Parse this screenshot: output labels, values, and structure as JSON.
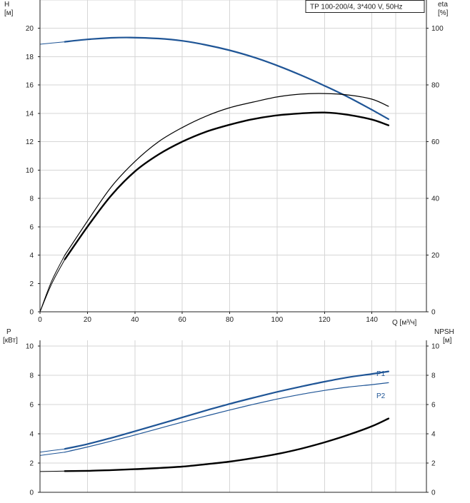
{
  "legend_box": "TP 100-200/4, 3*400 V, 50Hz",
  "colors": {
    "head": "#1f5596",
    "power": "#1f5596",
    "eta": "#000000",
    "npsh": "#000000",
    "grid": "#d6d6d6"
  },
  "chart_data": [
    {
      "type": "line",
      "panel": "upper",
      "title": "TP 100-200/4, 3*400 V, 50Hz",
      "xlabel": "Q [м³/ч]",
      "ylabel": "H\n[м]",
      "y2label": "eta\n[%]",
      "x_ticks": [
        "0",
        "20",
        "40",
        "60",
        "80",
        "100",
        "120",
        "140"
      ],
      "y_ticks": [
        "0",
        "2",
        "4",
        "6",
        "8",
        "10",
        "12",
        "14",
        "16",
        "18",
        "20"
      ],
      "y2_ticks": [
        "0",
        "20",
        "40",
        "60",
        "80",
        "100"
      ],
      "xlim": [
        0,
        163
      ],
      "ylim": [
        0,
        22
      ],
      "y2lim": [
        0,
        110
      ],
      "grid": true,
      "series": [
        {
          "name": "",
          "axis": "y",
          "color": "#1f5596",
          "stroke": 2.2,
          "x": [
            10.5,
            20,
            30,
            38,
            50,
            60,
            70,
            80,
            90,
            100,
            110,
            120,
            130,
            140,
            147
          ],
          "y": [
            19.05,
            19.22,
            19.33,
            19.35,
            19.28,
            19.12,
            18.83,
            18.45,
            17.97,
            17.38,
            16.7,
            15.95,
            15.15,
            14.25,
            13.6
          ]
        },
        {
          "name": "",
          "axis": "y",
          "color": "#1f5596",
          "stroke": 1,
          "x": [
            0,
            10.5
          ],
          "y": [
            18.88,
            19.05
          ]
        },
        {
          "name": "",
          "axis": "y2",
          "color": "#000000",
          "stroke": 1.2,
          "x": [
            10.5,
            20,
            30,
            40,
            50,
            60,
            70,
            80,
            90,
            100,
            110,
            120,
            130,
            140,
            147
          ],
          "y": [
            20,
            32,
            44,
            53,
            60,
            65,
            69,
            72,
            74,
            75.8,
            76.8,
            77,
            76.5,
            75,
            72.5
          ]
        },
        {
          "name": "",
          "axis": "y2",
          "color": "#000000",
          "stroke": 1,
          "x": [
            0,
            5,
            10.5
          ],
          "y": [
            0,
            11,
            20
          ]
        },
        {
          "name": "",
          "axis": "y2",
          "color": "#000000",
          "stroke": 2.4,
          "x": [
            10.5,
            20,
            30,
            40,
            50,
            60,
            70,
            80,
            90,
            100,
            110,
            120,
            130,
            140,
            147
          ],
          "y": [
            18.5,
            30,
            41,
            49.5,
            55.5,
            60,
            63.5,
            66,
            68,
            69.3,
            70,
            70.3,
            69.5,
            67.8,
            65.8
          ]
        },
        {
          "name": "",
          "axis": "y2",
          "color": "#000000",
          "stroke": 1,
          "x": [
            0,
            5,
            10.5
          ],
          "y": [
            0,
            10,
            18.5
          ]
        }
      ]
    },
    {
      "type": "line",
      "panel": "lower",
      "ylabel": "P\n[кВт]",
      "y2label": "NPSH\n[м]",
      "y_ticks": [
        "0",
        "2",
        "4",
        "6",
        "8",
        "10"
      ],
      "y2_ticks": [
        "0",
        "2",
        "4",
        "6",
        "8",
        "10"
      ],
      "xlim": [
        0,
        163
      ],
      "ylim": [
        0,
        10.4
      ],
      "y2lim": [
        0,
        10.4
      ],
      "grid": true,
      "series": [
        {
          "name": "P1",
          "axis": "y",
          "color": "#1f5596",
          "stroke": 2.2,
          "x": [
            10.5,
            20,
            30,
            40,
            50,
            60,
            70,
            80,
            90,
            100,
            110,
            120,
            130,
            140,
            147
          ],
          "y": [
            2.97,
            3.3,
            3.72,
            4.18,
            4.65,
            5.12,
            5.6,
            6.05,
            6.47,
            6.87,
            7.23,
            7.57,
            7.87,
            8.1,
            8.27
          ]
        },
        {
          "name": "",
          "axis": "y",
          "color": "#1f5596",
          "stroke": 1,
          "x": [
            0,
            10.5
          ],
          "y": [
            2.75,
            2.97
          ]
        },
        {
          "name": "P2",
          "axis": "y",
          "color": "#1f5596",
          "stroke": 1.2,
          "x": [
            10.5,
            20,
            30,
            40,
            50,
            60,
            70,
            80,
            90,
            100,
            110,
            120,
            130,
            140,
            147
          ],
          "y": [
            2.75,
            3.1,
            3.5,
            3.92,
            4.36,
            4.8,
            5.22,
            5.63,
            6.02,
            6.38,
            6.7,
            6.97,
            7.2,
            7.37,
            7.5
          ]
        },
        {
          "name": "",
          "axis": "y",
          "color": "#1f5596",
          "stroke": 1,
          "x": [
            0,
            10.5
          ],
          "y": [
            2.52,
            2.75
          ]
        },
        {
          "name": "",
          "axis": "y2",
          "color": "#000000",
          "stroke": 2.4,
          "x": [
            10.5,
            20,
            30,
            40,
            50,
            60,
            70,
            80,
            90,
            100,
            110,
            120,
            130,
            140,
            147
          ],
          "y": [
            1.45,
            1.47,
            1.52,
            1.58,
            1.66,
            1.76,
            1.92,
            2.1,
            2.34,
            2.62,
            2.98,
            3.42,
            3.93,
            4.52,
            5.05
          ]
        },
        {
          "name": "",
          "axis": "y2",
          "color": "#000000",
          "stroke": 1,
          "x": [
            0,
            10.5
          ],
          "y": [
            1.42,
            1.45
          ]
        }
      ]
    }
  ]
}
